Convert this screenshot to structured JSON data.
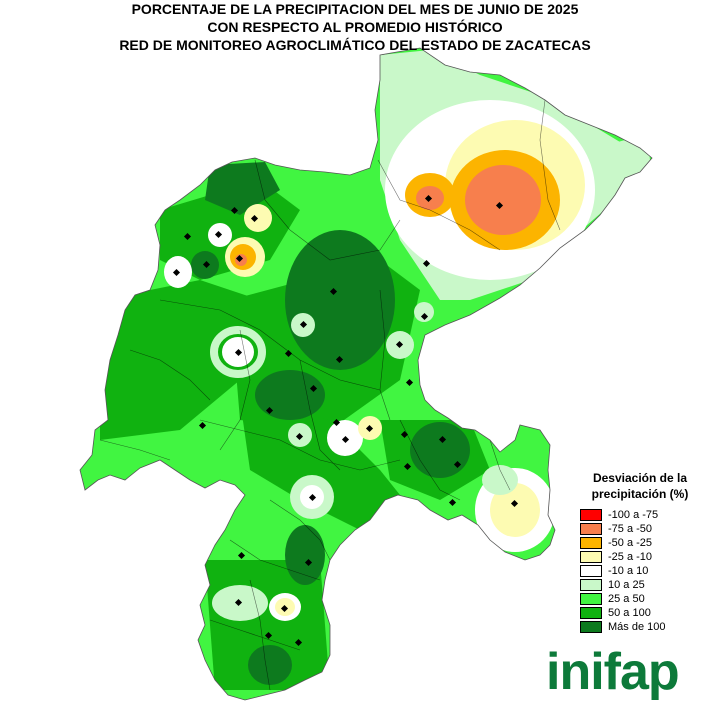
{
  "title": {
    "line1": "PORCENTAJE DE LA PRECIPITACION DEL MES DE JUNIO DE 2025",
    "line2": "CON RESPECTO AL PROMEDIO HISTÓRICO",
    "line3": "RED DE MONITOREO AGROCLIMÁTICO DEL ESTADO DE ZACATECAS"
  },
  "legend": {
    "title_line1": "Desviación de la",
    "title_line2": "precipitación (%)",
    "items": [
      {
        "label": "-100 a -75",
        "color": "#ff0000"
      },
      {
        "label": "-75 a -50",
        "color": "#f77f4d"
      },
      {
        "label": "-50 a -25",
        "color": "#fcb400"
      },
      {
        "label": "-25 a -10",
        "color": "#fdfbb2"
      },
      {
        "label": "-10 a 10",
        "color": "#ffffff"
      },
      {
        "label": "10 a 25",
        "color": "#c9f8c9"
      },
      {
        "label": "25 a 50",
        "color": "#41f541"
      },
      {
        "label": "50 a 100",
        "color": "#10b210"
      },
      {
        "label": "Más de 100",
        "color": "#0d7a1e"
      }
    ]
  },
  "logo": {
    "text": "inifap",
    "color": "#0d7a3a"
  }
}
